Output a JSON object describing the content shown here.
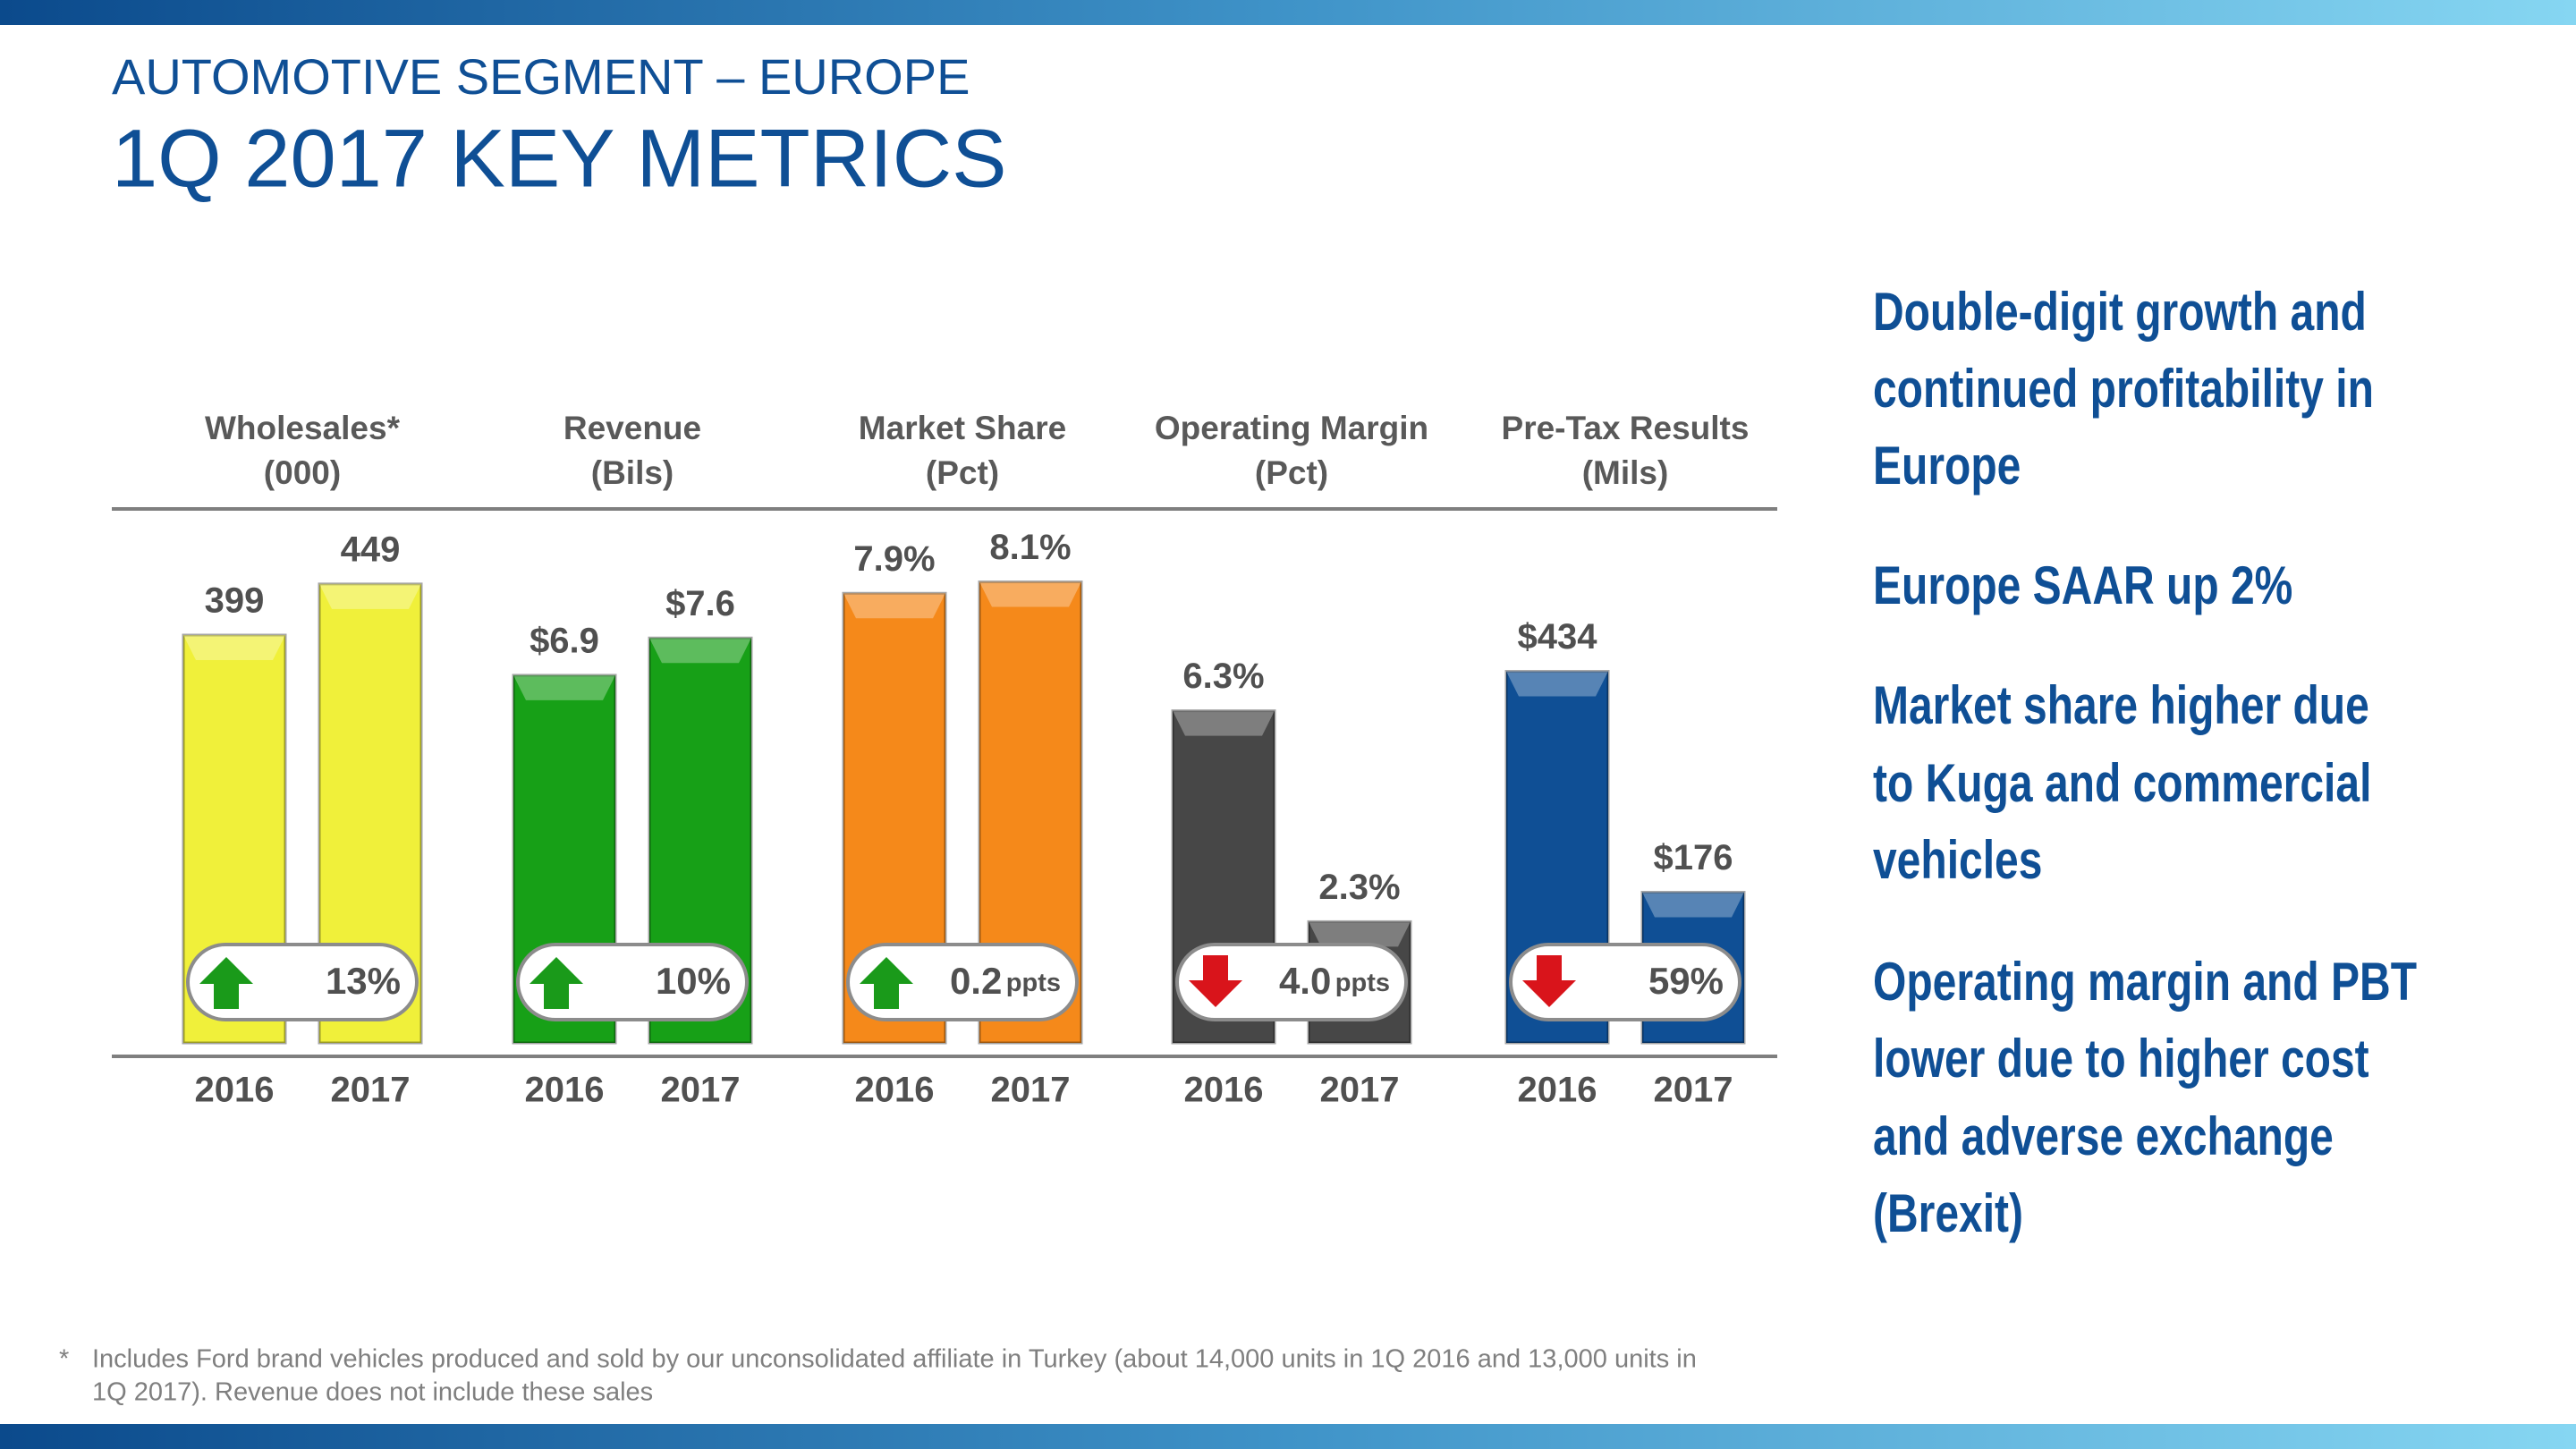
{
  "header": {
    "subtitle": "AUTOMOTIVE SEGMENT – EUROPE",
    "title": "1Q 2017 KEY METRICS"
  },
  "chart_data": [
    {
      "type": "bar",
      "title": "Wholesales*",
      "subtitle": "(000)",
      "categories": [
        "2016",
        "2017"
      ],
      "values": [
        399,
        449
      ],
      "ylim": [
        0,
        490
      ],
      "color": "#f0f03a",
      "change_label": "13%",
      "change_direction": "up"
    },
    {
      "type": "bar",
      "title": "Revenue",
      "subtitle": "(Bils)",
      "categories": [
        "2016",
        "2017"
      ],
      "values": [
        6.9,
        7.6
      ],
      "value_labels": [
        "$6.9",
        "$7.6"
      ],
      "ylim": [
        0,
        9.4
      ],
      "color": "#17a017",
      "change_label": "10%",
      "change_direction": "up"
    },
    {
      "type": "bar",
      "title": "Market Share",
      "subtitle": "(Pct)",
      "categories": [
        "2016",
        "2017"
      ],
      "values": [
        7.9,
        8.1
      ],
      "value_labels": [
        "7.9%",
        "8.1%"
      ],
      "ylim": [
        0,
        8.8
      ],
      "color": "#f5891a",
      "change_label": "0.2",
      "change_unit": "ppts",
      "change_direction": "up"
    },
    {
      "type": "bar",
      "title": "Operating Margin",
      "subtitle": "(Pct)",
      "categories": [
        "2016",
        "2017"
      ],
      "values": [
        6.3,
        2.3
      ],
      "value_labels": [
        "6.3%",
        "2.3%"
      ],
      "ylim": [
        0,
        9.5
      ],
      "color": "#474747",
      "change_label": "4.0",
      "change_unit": "ppts",
      "change_direction": "down"
    },
    {
      "type": "bar",
      "title": "Pre-Tax Results",
      "subtitle": "(Mils)",
      "categories": [
        "2016",
        "2017"
      ],
      "values": [
        434,
        176
      ],
      "value_labels": [
        "$434",
        "$176"
      ],
      "ylim": [
        0,
        585
      ],
      "color": "#0f4f95",
      "change_label": "59%",
      "change_direction": "down"
    }
  ],
  "bullets": [
    [
      "Double-digit growth and",
      "continued profitability in",
      "Europe"
    ],
    [
      "Europe SAAR up 2%"
    ],
    [
      "Market share higher due",
      "to Kuga and commercial",
      "vehicles"
    ],
    [
      "Operating margin and PBT",
      "lower due to higher cost",
      "and adverse exchange",
      "(Brexit)"
    ]
  ],
  "footnote": {
    "marker": "*",
    "lines": [
      "Includes Ford brand vehicles produced and sold by our unconsolidated affiliate in Turkey (about 14,000 units in 1Q 2016 and 13,000 units in",
      "1Q 2017).  Revenue does not include these sales"
    ]
  }
}
